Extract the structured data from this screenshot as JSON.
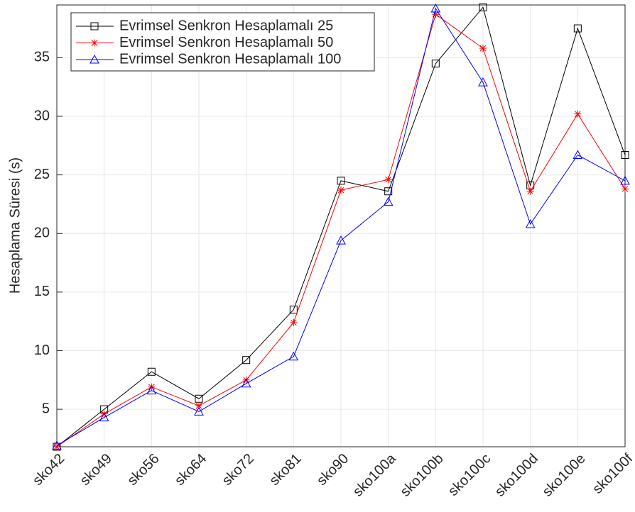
{
  "chart_data": {
    "type": "line",
    "y_label": "Hesaplama Süresi (s)",
    "categories": [
      "sko42",
      "sko49",
      "sko56",
      "sko64",
      "sko72",
      "sko81",
      "sko90",
      "sko100a",
      "sko100b",
      "sko100c",
      "sko100d",
      "sko100e",
      "sko100f"
    ],
    "series": [
      {
        "name": "Evrimsel Senkron Hesaplamalı 25",
        "color": "#000000",
        "marker": "square",
        "values": [
          1.8,
          5.0,
          8.2,
          5.9,
          9.2,
          13.5,
          24.5,
          23.6,
          34.5,
          39.3,
          24.1,
          37.5,
          26.7
        ]
      },
      {
        "name": "Evrimsel Senkron Hesaplamalı 50",
        "color": "#ff0000",
        "marker": "asterisk",
        "values": [
          1.8,
          4.6,
          6.9,
          5.3,
          7.5,
          12.4,
          23.7,
          24.6,
          38.7,
          35.8,
          23.6,
          30.2,
          23.8
        ]
      },
      {
        "name": "Evrimsel Senkron Hesaplamalı 100",
        "color": "#0000ff",
        "marker": "triangle",
        "values": [
          1.9,
          4.3,
          6.6,
          4.8,
          7.2,
          9.5,
          19.4,
          22.7,
          39.2,
          32.9,
          20.8,
          26.7,
          24.5
        ]
      }
    ],
    "ylim": [
      1.8,
      39.5
    ],
    "yticks": [
      5,
      10,
      15,
      20,
      25,
      30,
      35
    ],
    "grid": true,
    "legend": "upper-left"
  }
}
